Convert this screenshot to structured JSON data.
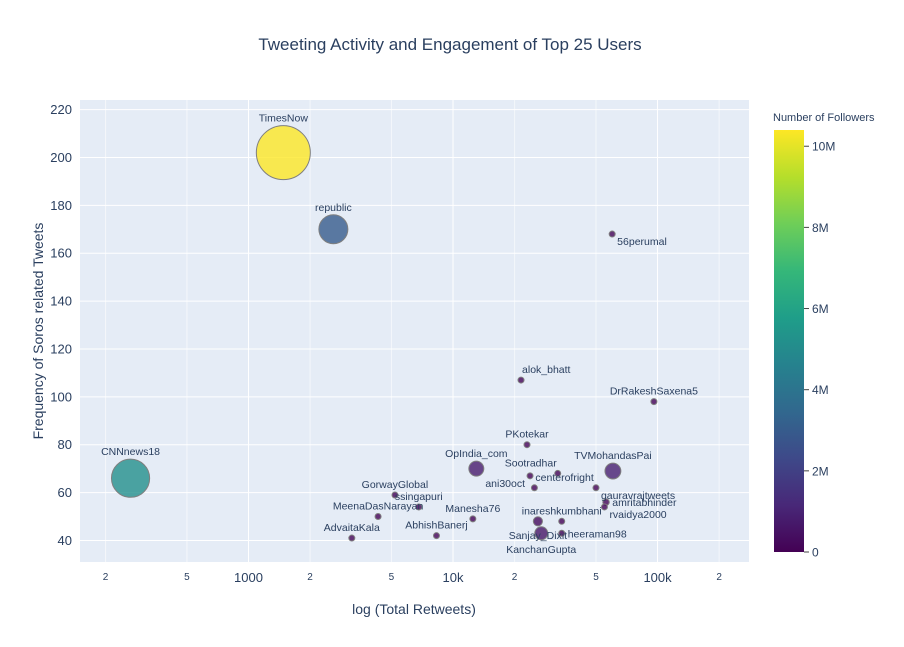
{
  "chart_data": {
    "type": "scatter",
    "title": "Tweeting Activity and Engagement of Top 25 Users",
    "xlabel": "log (Total Retweets)",
    "ylabel": "Frequency of Soros related Tweets",
    "x_scale": "log",
    "xlim": [
      150,
      280000
    ],
    "ylim": [
      31,
      224
    ],
    "x_major_ticks": [
      {
        "v": 1000,
        "label": "1000"
      },
      {
        "v": 10000,
        "label": "10k"
      },
      {
        "v": 100000,
        "label": "100k"
      }
    ],
    "x_minor_ticks": [
      {
        "v": 200,
        "label": "2"
      },
      {
        "v": 500,
        "label": "5"
      },
      {
        "v": 2000,
        "label": "2"
      },
      {
        "v": 5000,
        "label": "5"
      },
      {
        "v": 20000,
        "label": "2"
      },
      {
        "v": 50000,
        "label": "5"
      },
      {
        "v": 200000,
        "label": "2"
      }
    ],
    "y_ticks": [
      40,
      60,
      80,
      100,
      120,
      140,
      160,
      180,
      200,
      220
    ],
    "grid": true,
    "plot_background": "#e5ecf6",
    "colorbar": {
      "title": "Number of Followers",
      "colorscale": "Viridis",
      "cmin": 0,
      "cmax": 10400000,
      "ticks": [
        {
          "v": 0,
          "label": "0"
        },
        {
          "v": 2000000,
          "label": "2M"
        },
        {
          "v": 4000000,
          "label": "4M"
        },
        {
          "v": 6000000,
          "label": "6M"
        },
        {
          "v": 8000000,
          "label": "8M"
        },
        {
          "v": 10000000,
          "label": "10M"
        }
      ]
    },
    "points": [
      {
        "name": "TimesNow",
        "x": 1480,
        "y": 202,
        "followers": 10400000,
        "label_pos": "top"
      },
      {
        "name": "republic",
        "x": 2600,
        "y": 170,
        "followers": 3000000,
        "label_pos": "top"
      },
      {
        "name": "CNNnews18",
        "x": 265,
        "y": 66,
        "followers": 5200000,
        "label_pos": "top"
      },
      {
        "name": "56perumal",
        "x": 60000,
        "y": 168,
        "followers": 120000,
        "label_pos": "bottom right"
      },
      {
        "name": "alok_bhatt",
        "x": 21500,
        "y": 107,
        "followers": 100000,
        "label_pos": "top right"
      },
      {
        "name": "DrRakeshSaxena5",
        "x": 96000,
        "y": 98,
        "followers": 60000,
        "label_pos": "top"
      },
      {
        "name": "PKotekar",
        "x": 23000,
        "y": 80,
        "followers": 60000,
        "label_pos": "top"
      },
      {
        "name": "OpIndia_com",
        "x": 13000,
        "y": 70,
        "followers": 800000,
        "label_pos": "top"
      },
      {
        "name": "TVMohandasPai",
        "x": 60500,
        "y": 69,
        "followers": 900000,
        "label_pos": "top"
      },
      {
        "name": "Sootradhar",
        "x": 32500,
        "y": 68,
        "followers": 70000,
        "label_pos": "top left"
      },
      {
        "name": "ani30oct",
        "x": 23800,
        "y": 67,
        "followers": 60000,
        "label_pos": "bottom left"
      },
      {
        "name": "centerofright",
        "x": 25000,
        "y": 62,
        "followers": 80000,
        "label_pos": "top right"
      },
      {
        "name": "gauravrajtweets",
        "x": 50000,
        "y": 62,
        "followers": 70000,
        "label_pos": "bottom right"
      },
      {
        "name": "GorwayGlobal",
        "x": 5200,
        "y": 59,
        "followers": 60000,
        "label_pos": "top"
      },
      {
        "name": "amritabhinder",
        "x": 56000,
        "y": 56,
        "followers": 150000,
        "label_pos": "right"
      },
      {
        "name": "ssingapuri",
        "x": 6800,
        "y": 54,
        "followers": 100000,
        "label_pos": "top"
      },
      {
        "name": "MeenaDasNarayan",
        "x": 4300,
        "y": 50,
        "followers": 60000,
        "label_pos": "top"
      },
      {
        "name": "Manesha76",
        "x": 12500,
        "y": 49,
        "followers": 70000,
        "label_pos": "top"
      },
      {
        "name": "Sanjay_Dixit",
        "x": 26000,
        "y": 48,
        "followers": 300000,
        "label_pos": "bottom"
      },
      {
        "name": "inareshkumbhani",
        "x": 34000,
        "y": 48,
        "followers": 60000,
        "label_pos": "top"
      },
      {
        "name": "rvaidya2000",
        "x": 55000,
        "y": 54,
        "followers": 100000,
        "label_pos": "bottom right"
      },
      {
        "name": "AbhishBanerj",
        "x": 8300,
        "y": 42,
        "followers": 80000,
        "label_pos": "top"
      },
      {
        "name": "AdvaitaKala",
        "x": 3200,
        "y": 41,
        "followers": 90000,
        "label_pos": "top"
      },
      {
        "name": "KanchanGupta",
        "x": 27000,
        "y": 43,
        "followers": 600000,
        "label_pos": "bottom"
      },
      {
        "name": "heeraman98",
        "x": 34000,
        "y": 43,
        "followers": 80000,
        "label_pos": "right"
      }
    ]
  }
}
